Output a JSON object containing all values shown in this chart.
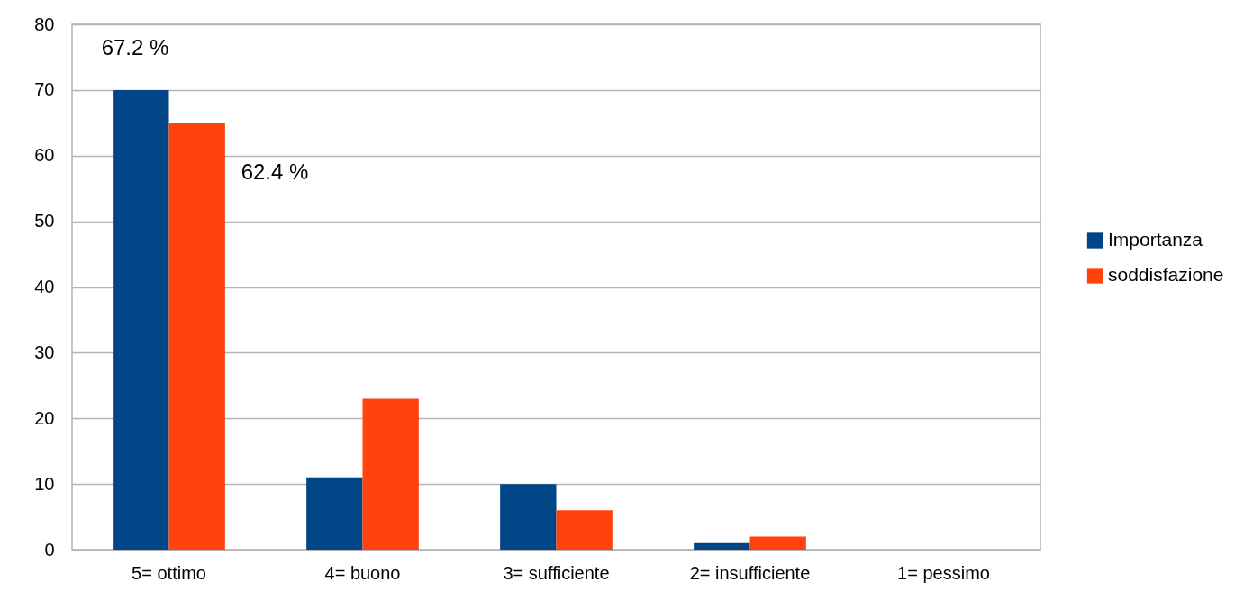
{
  "chart_data": {
    "type": "bar",
    "categories": [
      "5= ottimo",
      "4= buono",
      "3= sufficiente",
      "2= insufficiente",
      "1= pessimo"
    ],
    "series": [
      {
        "name": "Importanza",
        "color": "#004586",
        "values": [
          70,
          11,
          10,
          1,
          0
        ]
      },
      {
        "name": "soddisfazione",
        "color": "#ff420e",
        "values": [
          65,
          23,
          6,
          2,
          0
        ]
      }
    ],
    "annotations": [
      "67.2 %",
      "62.4 %"
    ],
    "ylim": [
      0,
      80
    ],
    "yticks": [
      0,
      10,
      20,
      30,
      40,
      50,
      60,
      70,
      80
    ],
    "grid": "y",
    "legend": "right"
  }
}
